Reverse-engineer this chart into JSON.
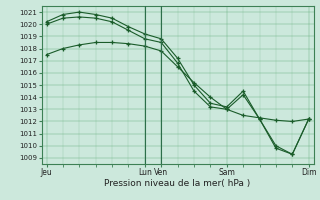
{
  "xlabel": "Pression niveau de la mer( hPa )",
  "bg_color": "#cce8dc",
  "grid_color": "#5aaa72",
  "line_color": "#1a5c2a",
  "ylim": [
    1008.5,
    1021.5
  ],
  "yticks": [
    1009,
    1010,
    1011,
    1012,
    1013,
    1014,
    1015,
    1016,
    1017,
    1018,
    1019,
    1020,
    1021
  ],
  "xtick_labels": [
    "Jeu",
    "Lun",
    "Ven",
    "Sam",
    "Dim"
  ],
  "xtick_positions": [
    0,
    6,
    7,
    11,
    16
  ],
  "vlines": [
    6,
    7
  ],
  "line1_x": [
    0,
    1,
    2,
    3,
    4,
    5,
    6,
    7,
    8,
    9,
    10,
    11,
    12,
    13,
    14,
    15,
    16
  ],
  "line1_y": [
    1017.5,
    1018.0,
    1018.3,
    1018.5,
    1018.5,
    1018.4,
    1018.2,
    1017.8,
    1016.5,
    1015.2,
    1014.0,
    1013.0,
    1012.5,
    1012.3,
    1012.1,
    1012.0,
    1012.2
  ],
  "line2_x": [
    0,
    1,
    2,
    3,
    4,
    5,
    6,
    7,
    8,
    9,
    10,
    11,
    12,
    13,
    14,
    15,
    16
  ],
  "line2_y": [
    1020.0,
    1020.5,
    1020.6,
    1020.5,
    1020.2,
    1019.5,
    1018.8,
    1018.5,
    1016.8,
    1014.5,
    1013.2,
    1013.0,
    1014.2,
    1012.2,
    1009.8,
    1009.3,
    1012.2
  ],
  "line3_x": [
    0,
    1,
    2,
    3,
    4,
    5,
    6,
    7,
    8,
    9,
    10,
    11,
    12,
    13,
    14,
    15,
    16
  ],
  "line3_y": [
    1020.2,
    1020.8,
    1021.0,
    1020.8,
    1020.5,
    1019.8,
    1019.2,
    1018.8,
    1017.2,
    1015.0,
    1013.5,
    1013.2,
    1014.5,
    1012.2,
    1010.0,
    1009.3,
    1012.2
  ]
}
